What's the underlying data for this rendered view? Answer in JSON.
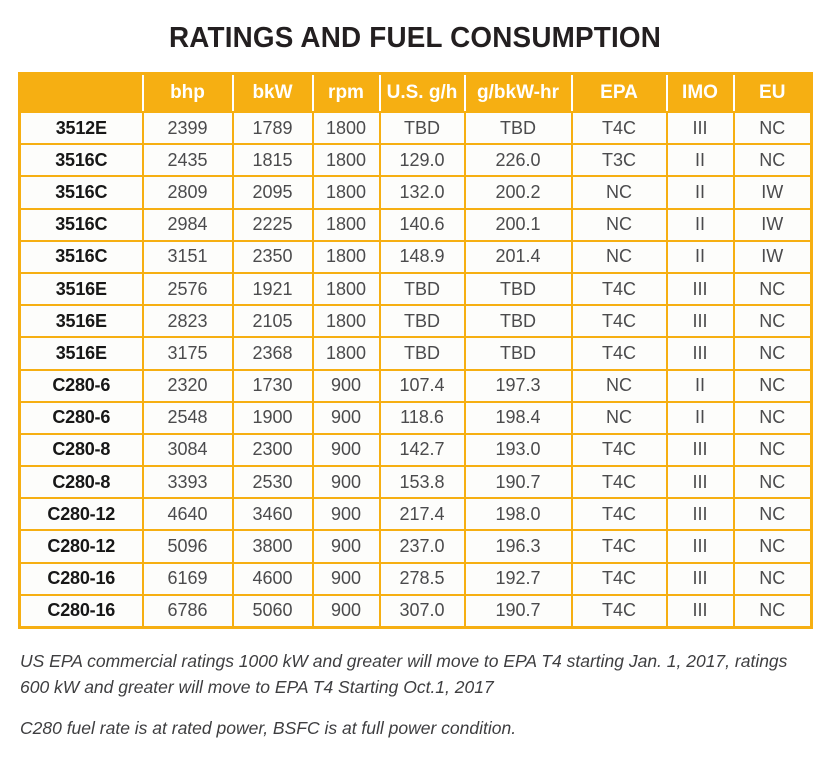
{
  "page": {
    "title": "RATINGS AND FUEL CONSUMPTION"
  },
  "colors": {
    "accent_amber": "#f6af12",
    "header_text": "#ffffff",
    "title_text": "#231f20",
    "value_text": "#4b4b4d",
    "model_text": "#171717"
  },
  "table": {
    "headers": [
      "",
      "bhp",
      "bkW",
      "rpm",
      "U.S. g/h",
      "g/bkW-hr",
      "EPA",
      "IMO",
      "EU"
    ],
    "rows": [
      {
        "model": "3512E",
        "values": [
          "2399",
          "1789",
          "1800",
          "TBD",
          "TBD",
          "T4C",
          "III",
          "NC"
        ]
      },
      {
        "model": "3516C",
        "values": [
          "2435",
          "1815",
          "1800",
          "129.0",
          "226.0",
          "T3C",
          "II",
          "NC"
        ]
      },
      {
        "model": "3516C",
        "values": [
          "2809",
          "2095",
          "1800",
          "132.0",
          "200.2",
          "NC",
          "II",
          "IW"
        ]
      },
      {
        "model": "3516C",
        "values": [
          "2984",
          "2225",
          "1800",
          "140.6",
          "200.1",
          "NC",
          "II",
          "IW"
        ]
      },
      {
        "model": "3516C",
        "values": [
          "3151",
          "2350",
          "1800",
          "148.9",
          "201.4",
          "NC",
          "II",
          "IW"
        ]
      },
      {
        "model": "3516E",
        "values": [
          "2576",
          "1921",
          "1800",
          "TBD",
          "TBD",
          "T4C",
          "III",
          "NC"
        ]
      },
      {
        "model": "3516E",
        "values": [
          "2823",
          "2105",
          "1800",
          "TBD",
          "TBD",
          "T4C",
          "III",
          "NC"
        ]
      },
      {
        "model": "3516E",
        "values": [
          "3175",
          "2368",
          "1800",
          "TBD",
          "TBD",
          "T4C",
          "III",
          "NC"
        ]
      },
      {
        "model": "C280-6",
        "values": [
          "2320",
          "1730",
          "900",
          "107.4",
          "197.3",
          "NC",
          "II",
          "NC"
        ]
      },
      {
        "model": "C280-6",
        "values": [
          "2548",
          "1900",
          "900",
          "118.6",
          "198.4",
          "NC",
          "II",
          "NC"
        ]
      },
      {
        "model": "C280-8",
        "values": [
          "3084",
          "2300",
          "900",
          "142.7",
          "193.0",
          "T4C",
          "III",
          "NC"
        ]
      },
      {
        "model": "C280-8",
        "values": [
          "3393",
          "2530",
          "900",
          "153.8",
          "190.7",
          "T4C",
          "III",
          "NC"
        ]
      },
      {
        "model": "C280-12",
        "values": [
          "4640",
          "3460",
          "900",
          "217.4",
          "198.0",
          "T4C",
          "III",
          "NC"
        ]
      },
      {
        "model": "C280-12",
        "values": [
          "5096",
          "3800",
          "900",
          "237.0",
          "196.3",
          "T4C",
          "III",
          "NC"
        ]
      },
      {
        "model": "C280-16",
        "values": [
          "6169",
          "4600",
          "900",
          "278.5",
          "192.7",
          "T4C",
          "III",
          "NC"
        ]
      },
      {
        "model": "C280-16",
        "values": [
          "6786",
          "5060",
          "900",
          "307.0",
          "190.7",
          "T4C",
          "III",
          "NC"
        ]
      }
    ]
  },
  "footnotes": {
    "note1_line1": "US EPA commercial ratings 1000 kW and greater will move to EPA T4 starting Jan. 1, 2017, ratings",
    "note1_line2": "600 kW and greater will move to EPA T4 Starting Oct.1, 2017",
    "note2": "C280 fuel rate is at rated power, BSFC is at full power condition."
  }
}
